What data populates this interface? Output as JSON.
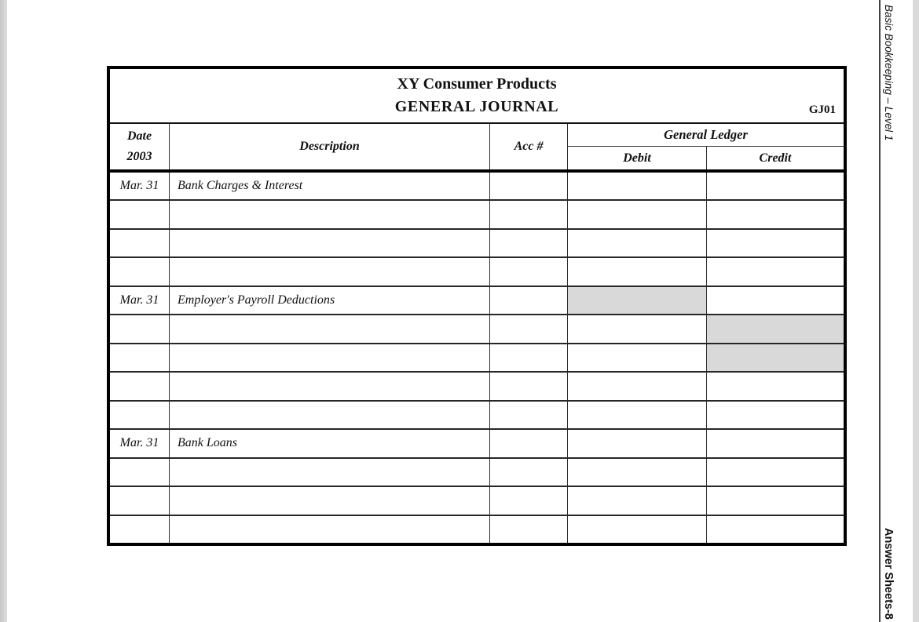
{
  "sidebar": {
    "course_label": "Basic Bookkeeping – Level 1",
    "sheet_label": "Answer Sheets-8"
  },
  "journal": {
    "company": "XY Consumer Products",
    "title": "GENERAL JOURNAL",
    "code": "GJ01",
    "headers": {
      "date": "Date",
      "year": "2003",
      "description": "Description",
      "acc": "Acc #",
      "general_ledger": "General Ledger",
      "debit": "Debit",
      "credit": "Credit"
    },
    "rows": [
      {
        "date": "Mar. 31",
        "description": "Bank Charges & Interest",
        "acc": "",
        "debit": "",
        "credit": "",
        "debit_shaded": false,
        "credit_shaded": false
      },
      {
        "date": "",
        "description": "",
        "acc": "",
        "debit": "",
        "credit": "",
        "debit_shaded": false,
        "credit_shaded": false
      },
      {
        "date": "",
        "description": "",
        "acc": "",
        "debit": "",
        "credit": "",
        "debit_shaded": false,
        "credit_shaded": false
      },
      {
        "date": "",
        "description": "",
        "acc": "",
        "debit": "",
        "credit": "",
        "debit_shaded": false,
        "credit_shaded": false
      },
      {
        "date": "Mar. 31",
        "description": "Employer's Payroll Deductions",
        "acc": "",
        "debit": "",
        "credit": "",
        "debit_shaded": true,
        "credit_shaded": false
      },
      {
        "date": "",
        "description": "",
        "acc": "",
        "debit": "",
        "credit": "",
        "debit_shaded": false,
        "credit_shaded": true
      },
      {
        "date": "",
        "description": "",
        "acc": "",
        "debit": "",
        "credit": "",
        "debit_shaded": false,
        "credit_shaded": true
      },
      {
        "date": "",
        "description": "",
        "acc": "",
        "debit": "",
        "credit": "",
        "debit_shaded": false,
        "credit_shaded": false
      },
      {
        "date": "",
        "description": "",
        "acc": "",
        "debit": "",
        "credit": "",
        "debit_shaded": false,
        "credit_shaded": false
      },
      {
        "date": "Mar. 31",
        "description": "Bank Loans",
        "acc": "",
        "debit": "",
        "credit": "",
        "debit_shaded": false,
        "credit_shaded": false
      },
      {
        "date": "",
        "description": "",
        "acc": "",
        "debit": "",
        "credit": "",
        "debit_shaded": false,
        "credit_shaded": false
      },
      {
        "date": "",
        "description": "",
        "acc": "",
        "debit": "",
        "credit": "",
        "debit_shaded": false,
        "credit_shaded": false
      },
      {
        "date": "",
        "description": "",
        "acc": "",
        "debit": "",
        "credit": "",
        "debit_shaded": false,
        "credit_shaded": false
      }
    ]
  },
  "colors": {
    "shaded_cell": "#d9d9d9",
    "table_border": "#000000"
  }
}
